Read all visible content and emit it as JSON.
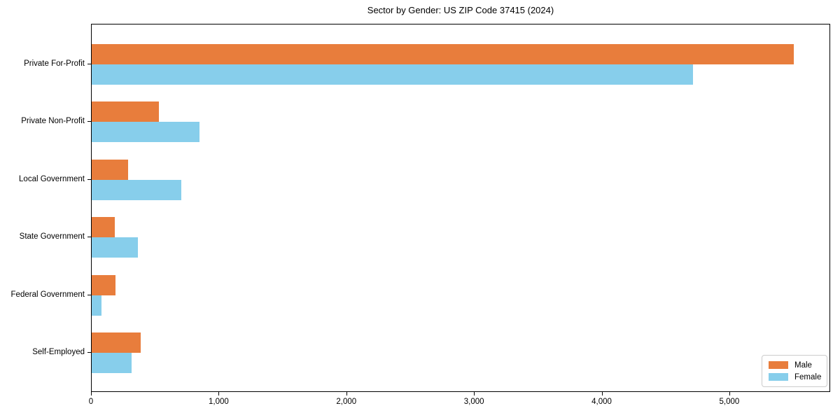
{
  "chart_data": {
    "type": "bar",
    "orientation": "horizontal",
    "title": "Sector by Gender: US ZIP Code 37415 (2024)",
    "categories": [
      "Private For-Profit",
      "Private Non-Profit",
      "Local Government",
      "State Government",
      "Federal Government",
      "Self-Employed"
    ],
    "series": [
      {
        "name": "Male",
        "color": "#e87d3c",
        "values": [
          5500,
          525,
          285,
          180,
          185,
          385
        ]
      },
      {
        "name": "Female",
        "color": "#87ceeb",
        "values": [
          4710,
          845,
          700,
          360,
          78,
          310
        ]
      }
    ],
    "xlabel": "",
    "ylabel": "",
    "xlim": [
      0,
      5790
    ],
    "xticks": {
      "values": [
        0,
        1000,
        2000,
        3000,
        4000,
        5000
      ],
      "labels": [
        "0",
        "1,000",
        "2,000",
        "3,000",
        "4,000",
        "5,000"
      ]
    },
    "grid": false,
    "legend": {
      "position": "lower right",
      "entries": [
        "Male",
        "Female"
      ]
    }
  }
}
